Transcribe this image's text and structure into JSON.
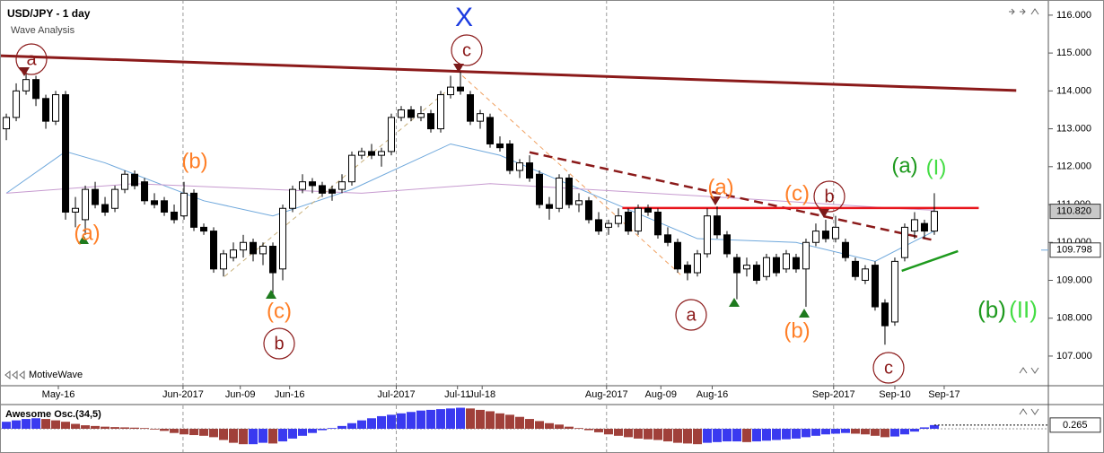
{
  "chart_data": {
    "type": "candlestick",
    "title": "USD/JPY - 1 day",
    "subtitle": "Wave Analysis",
    "brand": "MotiveWave",
    "up_color": "#ffffff",
    "down_color": "#000000",
    "xlim": [
      -0.64,
      105.55
    ],
    "ylim": [
      106.3,
      116.4
    ],
    "yticks": [
      {
        "value": 116,
        "label": "116.000"
      },
      {
        "value": 115,
        "label": "115.000"
      },
      {
        "value": 114,
        "label": "114.000"
      },
      {
        "value": 113,
        "label": "113.000"
      },
      {
        "value": 112,
        "label": "112.000"
      },
      {
        "value": 111,
        "label": "111.000"
      },
      {
        "value": 110,
        "label": "110.000"
      },
      {
        "value": 109,
        "label": "109.000"
      },
      {
        "value": 108,
        "label": "108.000"
      },
      {
        "value": 107,
        "label": "107.000"
      }
    ],
    "xticks": [
      {
        "value": 5.27,
        "label": "May-16",
        "major": false
      },
      {
        "value": 17.9,
        "label": "Jun-2017",
        "major": true
      },
      {
        "value": 23.7,
        "label": "Jun-09",
        "major": false
      },
      {
        "value": 28.7,
        "label": "Jun-16",
        "major": false
      },
      {
        "value": 39.5,
        "label": "Jul-2017",
        "major": true
      },
      {
        "value": 45.7,
        "label": "Jul-11",
        "major": false
      },
      {
        "value": 48.2,
        "label": "Jul-18",
        "major": false
      },
      {
        "value": 60.8,
        "label": "Aug-2017",
        "major": true
      },
      {
        "value": 66.3,
        "label": "Aug-09",
        "major": false
      },
      {
        "value": 71.5,
        "label": "Aug-16",
        "major": false
      },
      {
        "value": 83.8,
        "label": "Sep-2017",
        "major": true
      },
      {
        "value": 90,
        "label": "Sep-10",
        "major": false
      },
      {
        "value": 95,
        "label": "Sep-17",
        "major": false
      }
    ],
    "ohlc": [
      [
        113.0,
        113.4,
        112.7,
        113.3
      ],
      [
        113.3,
        114.2,
        113.2,
        114.0
      ],
      [
        114.0,
        114.5,
        113.9,
        114.3
      ],
      [
        114.3,
        114.4,
        113.6,
        113.8
      ],
      [
        113.8,
        113.9,
        113.0,
        113.2
      ],
      [
        113.2,
        114.0,
        113.1,
        113.9
      ],
      [
        113.9,
        114.0,
        110.6,
        110.8
      ],
      [
        110.8,
        111.2,
        110.4,
        110.9
      ],
      [
        110.6,
        111.5,
        110.2,
        111.4
      ],
      [
        111.4,
        111.6,
        110.9,
        111.0
      ],
      [
        111.0,
        111.2,
        110.7,
        110.8
      ],
      [
        110.9,
        111.5,
        110.8,
        111.4
      ],
      [
        111.4,
        111.9,
        111.3,
        111.8
      ],
      [
        111.8,
        111.9,
        111.4,
        111.5
      ],
      [
        111.6,
        111.7,
        111.0,
        111.1
      ],
      [
        111.1,
        111.3,
        110.9,
        111.0
      ],
      [
        111.1,
        111.2,
        110.7,
        110.8
      ],
      [
        110.8,
        111.0,
        110.5,
        110.6
      ],
      [
        110.7,
        111.6,
        110.6,
        111.3
      ],
      [
        111.3,
        111.4,
        110.3,
        110.4
      ],
      [
        110.4,
        110.5,
        110.2,
        110.3
      ],
      [
        110.3,
        110.4,
        109.2,
        109.3
      ],
      [
        109.3,
        109.8,
        109.1,
        109.7
      ],
      [
        109.6,
        110.0,
        109.5,
        109.8
      ],
      [
        109.8,
        110.2,
        109.6,
        110.0
      ],
      [
        110.0,
        110.1,
        109.5,
        109.7
      ],
      [
        109.7,
        110.0,
        109.4,
        109.9
      ],
      [
        109.9,
        110.0,
        108.6,
        109.2
      ],
      [
        109.3,
        111.0,
        109.0,
        110.9
      ],
      [
        110.9,
        111.5,
        110.8,
        111.4
      ],
      [
        111.4,
        111.8,
        111.3,
        111.6
      ],
      [
        111.6,
        111.7,
        111.3,
        111.5
      ],
      [
        111.5,
        111.6,
        111.2,
        111.3
      ],
      [
        111.4,
        111.5,
        111.1,
        111.3
      ],
      [
        111.4,
        111.8,
        111.3,
        111.6
      ],
      [
        111.6,
        112.4,
        111.5,
        112.3
      ],
      [
        112.3,
        112.5,
        112.2,
        112.4
      ],
      [
        112.4,
        112.6,
        112.2,
        112.3
      ],
      [
        112.3,
        112.5,
        112.0,
        112.4
      ],
      [
        112.4,
        113.4,
        112.3,
        113.3
      ],
      [
        113.3,
        113.6,
        113.2,
        113.5
      ],
      [
        113.5,
        113.6,
        113.2,
        113.3
      ],
      [
        113.3,
        113.6,
        113.2,
        113.4
      ],
      [
        113.4,
        113.5,
        112.9,
        113.0
      ],
      [
        113.0,
        114.0,
        112.9,
        113.9
      ],
      [
        113.9,
        114.4,
        113.8,
        114.1
      ],
      [
        114.1,
        114.5,
        113.9,
        114.0
      ],
      [
        113.9,
        114.0,
        113.1,
        113.2
      ],
      [
        113.2,
        113.5,
        113.0,
        113.4
      ],
      [
        113.3,
        113.4,
        112.5,
        112.6
      ],
      [
        112.6,
        112.8,
        112.4,
        112.5
      ],
      [
        112.6,
        112.7,
        111.8,
        111.9
      ],
      [
        111.9,
        112.2,
        111.7,
        112.1
      ],
      [
        112.1,
        112.3,
        111.6,
        111.7
      ],
      [
        111.8,
        111.9,
        110.9,
        111.0
      ],
      [
        111.0,
        111.2,
        110.6,
        110.9
      ],
      [
        110.9,
        111.8,
        110.8,
        111.7
      ],
      [
        111.7,
        111.8,
        110.9,
        111.0
      ],
      [
        111.0,
        111.3,
        110.8,
        111.1
      ],
      [
        111.1,
        111.2,
        110.5,
        110.6
      ],
      [
        110.6,
        110.8,
        110.2,
        110.3
      ],
      [
        110.4,
        110.6,
        110.2,
        110.5
      ],
      [
        110.5,
        110.9,
        110.4,
        110.7
      ],
      [
        110.8,
        110.9,
        110.2,
        110.3
      ],
      [
        110.3,
        111.0,
        110.2,
        110.9
      ],
      [
        110.9,
        111.0,
        110.7,
        110.8
      ],
      [
        110.8,
        110.9,
        110.1,
        110.2
      ],
      [
        110.2,
        110.4,
        109.9,
        110.0
      ],
      [
        110.0,
        110.1,
        109.2,
        109.3
      ],
      [
        109.4,
        109.5,
        109.0,
        109.2
      ],
      [
        109.2,
        109.8,
        109.1,
        109.7
      ],
      [
        109.7,
        110.9,
        109.6,
        110.7
      ],
      [
        110.7,
        110.95,
        110.1,
        110.2
      ],
      [
        110.2,
        110.3,
        109.6,
        109.7
      ],
      [
        109.6,
        109.7,
        108.5,
        109.2
      ],
      [
        109.3,
        109.6,
        109.1,
        109.4
      ],
      [
        109.4,
        109.5,
        108.9,
        109.0
      ],
      [
        109.1,
        109.7,
        109.0,
        109.6
      ],
      [
        109.6,
        109.7,
        109.1,
        109.2
      ],
      [
        109.3,
        109.8,
        109.2,
        109.7
      ],
      [
        109.6,
        109.7,
        109.2,
        109.3
      ],
      [
        109.3,
        110.1,
        108.3,
        110.0
      ],
      [
        110.0,
        110.5,
        109.9,
        110.3
      ],
      [
        110.3,
        110.6,
        110.0,
        110.1
      ],
      [
        110.1,
        110.7,
        110.0,
        110.4
      ],
      [
        110.0,
        110.1,
        109.5,
        109.6
      ],
      [
        109.5,
        109.6,
        109.0,
        109.1
      ],
      [
        109.0,
        109.4,
        108.9,
        109.3
      ],
      [
        109.4,
        109.5,
        108.2,
        108.3
      ],
      [
        108.4,
        108.5,
        107.3,
        107.8
      ],
      [
        107.9,
        109.6,
        107.8,
        109.5
      ],
      [
        109.6,
        110.5,
        109.5,
        110.4
      ],
      [
        110.3,
        110.8,
        110.1,
        110.6
      ],
      [
        110.5,
        110.6,
        110.1,
        110.3
      ],
      [
        110.3,
        111.3,
        110.2,
        110.82
      ]
    ],
    "moving_averages": [
      {
        "color": "#6fa8dc",
        "x": [
          0,
          6,
          10,
          20,
          27,
          35,
          45,
          50,
          60,
          70,
          80,
          88,
          94
        ],
        "values": [
          111.3,
          112.4,
          112.1,
          111.1,
          110.7,
          111.4,
          112.6,
          112.3,
          111.2,
          110.1,
          110.0,
          109.5,
          110.3
        ]
      },
      {
        "color": "#c79bd0",
        "x": [
          0,
          13,
          36,
          49,
          72,
          90,
          94
        ],
        "values": [
          111.3,
          111.55,
          111.3,
          111.55,
          111.2,
          110.9,
          110.85
        ]
      }
    ],
    "trendlines": [
      {
        "color": "#8b1a1a",
        "dashed": false,
        "width": 3,
        "x1": -0.64,
        "y1": 114.93,
        "x2": 102.3,
        "y2": 114.01
      },
      {
        "color": "#8b1a1a",
        "dashed": true,
        "width": 2.5,
        "x1": 53,
        "y1": 112.38,
        "x2": 93.9,
        "y2": 110.06
      },
      {
        "color": "#e8141b",
        "dashed": false,
        "width": 2.5,
        "x1": 62.4,
        "y1": 110.91,
        "x2": 98.5,
        "y2": 110.91
      },
      {
        "color": "#1e9a1e",
        "dashed": false,
        "width": 2.5,
        "x1": 90.7,
        "y1": 109.25,
        "x2": 96.4,
        "y2": 109.77
      },
      {
        "color": "#c8b07a",
        "dashed": true,
        "width": 1,
        "x1": 22.1,
        "y1": 109.1,
        "x2": 45.3,
        "y2": 114.15
      },
      {
        "color": "#f0a060",
        "dashed": true,
        "width": 1,
        "x1": 46.2,
        "y1": 114.4,
        "x2": 68.5,
        "y2": 109.1
      }
    ],
    "last_price": {
      "value": 110.82,
      "label": "110.820"
    },
    "ma_price": {
      "value": 109.798,
      "label": "109.798"
    },
    "annotations": [
      {
        "text": "a",
        "color": "#8b1a1a",
        "circled": true
      },
      {
        "text": "(a)",
        "color": "#ff7f27",
        "circled": false
      },
      {
        "text": "(b)",
        "color": "#ff7f27",
        "circled": false
      },
      {
        "text": "(c)",
        "color": "#ff7f27",
        "circled": false
      },
      {
        "text": "b",
        "color": "#8b1a1a",
        "circled": true
      },
      {
        "text": "X",
        "color": "#1b3be0",
        "circled": false
      },
      {
        "text": "c",
        "color": "#8b1a1a",
        "circled": true
      },
      {
        "text": "a",
        "color": "#8b1a1a",
        "circled": true
      },
      {
        "text": "(a)",
        "color": "#ff7f27",
        "circled": false
      },
      {
        "text": "(c)",
        "color": "#ff7f27",
        "circled": false
      },
      {
        "text": "b",
        "color": "#8b1a1a",
        "circled": true
      },
      {
        "text": "(b)",
        "color": "#ff7f27",
        "circled": false
      },
      {
        "text": "c",
        "color": "#8b1a1a",
        "circled": true
      },
      {
        "text": "(a)",
        "color": "#1e9a1e",
        "circled": false
      },
      {
        "text": "(I)",
        "color": "#44dd44",
        "circled": false
      },
      {
        "text": "(b)",
        "color": "#1e9a1e",
        "circled": false
      },
      {
        "text": "(II)",
        "color": "#44dd44",
        "circled": false
      }
    ],
    "oscillator": {
      "name": "Awesome Osc.(34,5)",
      "up_color": "#3a3af0",
      "down_color": "#a0403a",
      "ylim": [
        -1.6,
        1.6
      ],
      "values": [
        0.5,
        0.6,
        0.7,
        0.75,
        0.7,
        0.6,
        0.5,
        0.35,
        0.25,
        0.2,
        0.15,
        0.12,
        0.1,
        0.08,
        0.05,
        -0.05,
        -0.15,
        -0.3,
        -0.4,
        -0.45,
        -0.5,
        -0.6,
        -0.8,
        -1.0,
        -1.1,
        -1.1,
        -1.0,
        -1.05,
        -0.9,
        -0.7,
        -0.5,
        -0.3,
        -0.1,
        0.05,
        0.2,
        0.4,
        0.6,
        0.75,
        0.9,
        1.0,
        1.1,
        1.2,
        1.3,
        1.35,
        1.4,
        1.45,
        1.5,
        1.45,
        1.35,
        1.25,
        1.1,
        1.0,
        0.85,
        0.7,
        0.55,
        0.4,
        0.3,
        0.15,
        0.05,
        -0.1,
        -0.25,
        -0.4,
        -0.5,
        -0.6,
        -0.7,
        -0.75,
        -0.8,
        -0.9,
        -1.0,
        -1.05,
        -1.1,
        -1.0,
        -0.95,
        -0.9,
        -0.9,
        -0.95,
        -0.9,
        -0.85,
        -0.8,
        -0.75,
        -0.7,
        -0.6,
        -0.5,
        -0.4,
        -0.35,
        -0.3,
        -0.35,
        -0.4,
        -0.5,
        -0.6,
        -0.55,
        -0.4,
        -0.2,
        0.1,
        0.265
      ],
      "last": {
        "value": 0.265,
        "label": "0.265"
      }
    }
  }
}
